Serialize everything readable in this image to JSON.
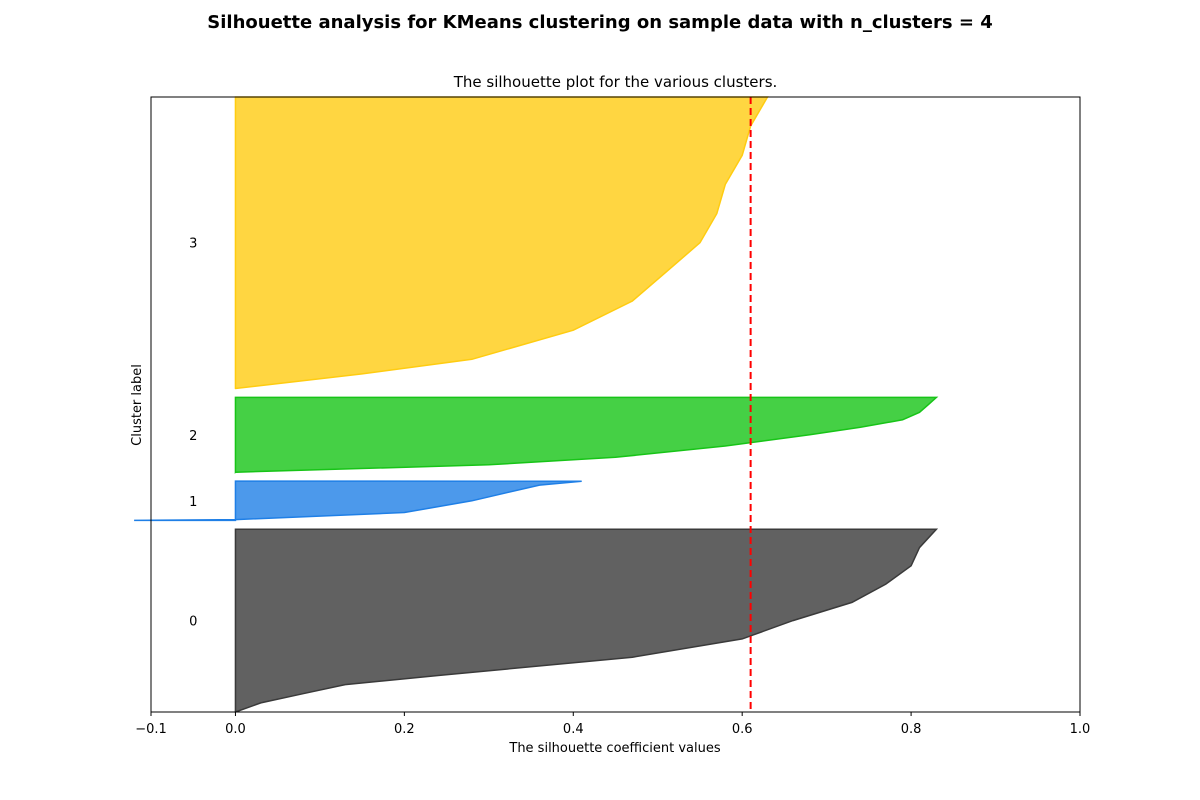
{
  "chart_data": {
    "type": "area",
    "suptitle": "Silhouette analysis for KMeans clustering on sample data with n_clusters = 4",
    "title": "The silhouette plot for the various clusters.",
    "xlabel": "The silhouette coefficient values",
    "ylabel": "Cluster label",
    "xlim": [
      -0.1,
      1.0
    ],
    "xticks": [
      {
        "value": -0.1,
        "label": "−0.1"
      },
      {
        "value": 0.0,
        "label": "0.0"
      },
      {
        "value": 0.2,
        "label": "0.2"
      },
      {
        "value": 0.4,
        "label": "0.4"
      },
      {
        "value": 0.6,
        "label": "0.6"
      },
      {
        "value": 0.8,
        "label": "0.8"
      },
      {
        "value": 1.0,
        "label": "1.0"
      }
    ],
    "yticks": [],
    "grid": false,
    "average_silhouette_score": 0.61,
    "average_line_color": "#ff0000",
    "clusters": [
      {
        "label": "0",
        "color": "#3a3a3a",
        "sample_range": [
          10,
          215
        ],
        "profile": [
          [
            0.0,
            0.0
          ],
          [
            0.05,
            0.03
          ],
          [
            0.1,
            0.08
          ],
          [
            0.15,
            0.13
          ],
          [
            0.2,
            0.24
          ],
          [
            0.3,
            0.47
          ],
          [
            0.4,
            0.6
          ],
          [
            0.5,
            0.66
          ],
          [
            0.6,
            0.73
          ],
          [
            0.7,
            0.77
          ],
          [
            0.8,
            0.8
          ],
          [
            0.9,
            0.81
          ],
          [
            1.0,
            0.83
          ]
        ]
      },
      {
        "label": "1",
        "color": "#1f7fe6",
        "sample_range": [
          225,
          269
        ],
        "profile": [
          [
            0.0,
            -0.12
          ],
          [
            0.02,
            0.0
          ],
          [
            0.2,
            0.2
          ],
          [
            0.5,
            0.28
          ],
          [
            0.8,
            0.34
          ],
          [
            0.9,
            0.36
          ],
          [
            1.0,
            0.41
          ]
        ]
      },
      {
        "label": "2",
        "color": "#17c417",
        "sample_range": [
          279,
          363
        ],
        "profile": [
          [
            0.0,
            0.0
          ],
          [
            0.1,
            0.3
          ],
          [
            0.2,
            0.45
          ],
          [
            0.35,
            0.58
          ],
          [
            0.5,
            0.68
          ],
          [
            0.6,
            0.74
          ],
          [
            0.7,
            0.79
          ],
          [
            0.8,
            0.81
          ],
          [
            0.9,
            0.82
          ],
          [
            1.0,
            0.83
          ]
        ]
      },
      {
        "label": "3",
        "color": "#ffcc11",
        "sample_range": [
          373,
          700
        ],
        "profile": [
          [
            0.0,
            0.0
          ],
          [
            0.05,
            0.15
          ],
          [
            0.1,
            0.28
          ],
          [
            0.2,
            0.4
          ],
          [
            0.3,
            0.47
          ],
          [
            0.4,
            0.51
          ],
          [
            0.5,
            0.55
          ],
          [
            0.6,
            0.57
          ],
          [
            0.7,
            0.58
          ],
          [
            0.8,
            0.6
          ],
          [
            0.9,
            0.61
          ],
          [
            1.0,
            0.63
          ]
        ]
      }
    ],
    "ylim": [
      10,
      700
    ]
  }
}
